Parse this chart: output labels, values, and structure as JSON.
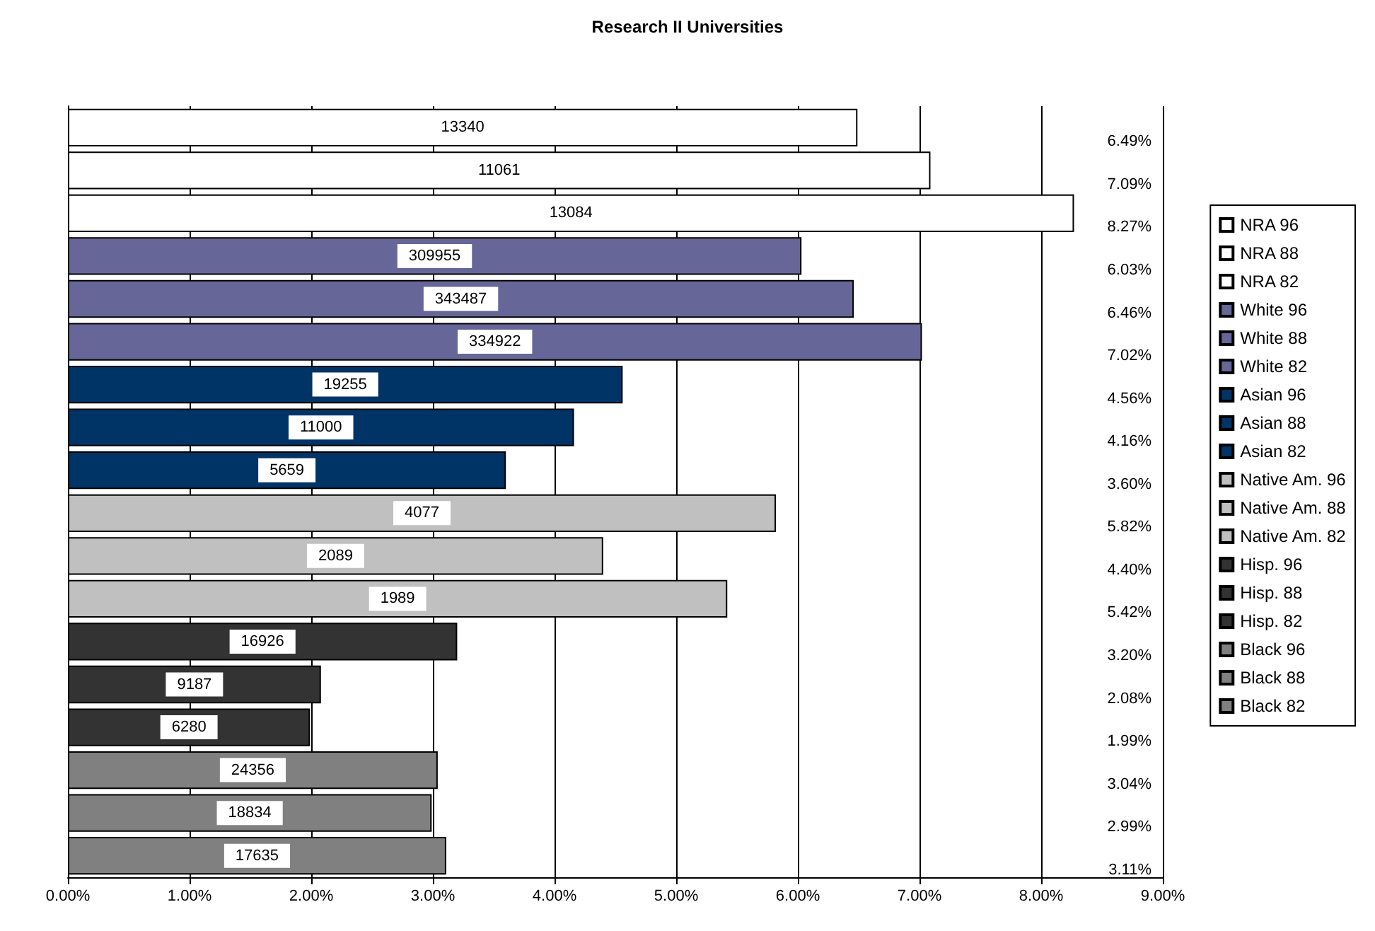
{
  "chart_data": {
    "type": "bar",
    "title": "Research II Universities",
    "orientation": "horizontal",
    "stacked": true,
    "grid": "x",
    "legend": "right",
    "categories": [
      null,
      null,
      null,
      null,
      null,
      null,
      null,
      null,
      null,
      null,
      null,
      null,
      null,
      null,
      null,
      null,
      null,
      null
    ],
    "series": [
      {
        "name": "NRA 96",
        "color": "#ffffff",
        "values": [
          6.49,
          null,
          null,
          null,
          null,
          null,
          null,
          null,
          null,
          null,
          null,
          null,
          null,
          null,
          null,
          null,
          null,
          null
        ]
      },
      {
        "name": "NRA 88",
        "color": "#ffffff",
        "values": [
          null,
          7.09,
          null,
          null,
          null,
          null,
          null,
          null,
          null,
          null,
          null,
          null,
          null,
          null,
          null,
          null,
          null,
          null
        ]
      },
      {
        "name": "NRA 82",
        "color": "#ffffff",
        "values": [
          null,
          null,
          8.27,
          null,
          null,
          null,
          null,
          null,
          null,
          null,
          null,
          null,
          null,
          null,
          null,
          null,
          null,
          null
        ]
      },
      {
        "name": "White 96",
        "color": "#666699",
        "values": [
          null,
          null,
          null,
          6.03,
          null,
          null,
          null,
          null,
          null,
          null,
          null,
          null,
          null,
          null,
          null,
          null,
          null,
          null
        ]
      },
      {
        "name": "White 88",
        "color": "#666699",
        "values": [
          null,
          null,
          null,
          null,
          6.46,
          null,
          null,
          null,
          null,
          null,
          null,
          null,
          null,
          null,
          null,
          null,
          null,
          null
        ]
      },
      {
        "name": "White 82",
        "color": "#666699",
        "values": [
          null,
          null,
          null,
          null,
          null,
          7.02,
          null,
          null,
          null,
          null,
          null,
          null,
          null,
          null,
          null,
          null,
          null,
          null
        ]
      },
      {
        "name": "Asian 96",
        "color": "#003366",
        "values": [
          null,
          null,
          null,
          null,
          null,
          null,
          4.56,
          null,
          null,
          null,
          null,
          null,
          null,
          null,
          null,
          null,
          null,
          null
        ]
      },
      {
        "name": "Asian 88",
        "color": "#003366",
        "values": [
          null,
          null,
          null,
          null,
          null,
          null,
          null,
          4.16,
          null,
          null,
          null,
          null,
          null,
          null,
          null,
          null,
          null,
          null
        ]
      },
      {
        "name": "Asian 82",
        "color": "#003366",
        "values": [
          null,
          null,
          null,
          null,
          null,
          null,
          null,
          null,
          3.6,
          null,
          null,
          null,
          null,
          null,
          null,
          null,
          null,
          null
        ]
      },
      {
        "name": "Native Am. 96",
        "color": "#c0c0c0",
        "values": [
          null,
          null,
          null,
          null,
          null,
          null,
          null,
          null,
          null,
          5.82,
          null,
          null,
          null,
          null,
          null,
          null,
          null,
          null
        ]
      },
      {
        "name": "Native Am. 88",
        "color": "#c0c0c0",
        "values": [
          null,
          null,
          null,
          null,
          null,
          null,
          null,
          null,
          null,
          null,
          4.4,
          null,
          null,
          null,
          null,
          null,
          null,
          null
        ]
      },
      {
        "name": "Native Am. 82",
        "color": "#c0c0c0",
        "values": [
          null,
          null,
          null,
          null,
          null,
          null,
          null,
          null,
          null,
          null,
          null,
          5.42,
          null,
          null,
          null,
          null,
          null,
          null
        ]
      },
      {
        "name": "Hisp. 96",
        "color": "#333333",
        "values": [
          null,
          null,
          null,
          null,
          null,
          null,
          null,
          null,
          null,
          null,
          null,
          null,
          3.2,
          null,
          null,
          null,
          null,
          null
        ]
      },
      {
        "name": "Hisp. 88",
        "color": "#333333",
        "values": [
          null,
          null,
          null,
          null,
          null,
          null,
          null,
          null,
          null,
          null,
          null,
          null,
          null,
          2.08,
          null,
          null,
          null,
          null
        ]
      },
      {
        "name": "Hisp. 82",
        "color": "#333333",
        "values": [
          null,
          null,
          null,
          null,
          null,
          null,
          null,
          null,
          null,
          null,
          null,
          null,
          null,
          null,
          1.99,
          null,
          null,
          null
        ]
      },
      {
        "name": "Black 96",
        "color": "#808080",
        "values": [
          null,
          null,
          null,
          null,
          null,
          null,
          null,
          null,
          null,
          null,
          null,
          null,
          null,
          null,
          null,
          3.04,
          null,
          null
        ]
      },
      {
        "name": "Black 88",
        "color": "#808080",
        "values": [
          null,
          null,
          null,
          null,
          null,
          null,
          null,
          null,
          null,
          null,
          null,
          null,
          null,
          null,
          null,
          null,
          2.99,
          null
        ]
      },
      {
        "name": "Black 82",
        "color": "#808080",
        "values": [
          null,
          null,
          null,
          null,
          null,
          null,
          null,
          null,
          null,
          null,
          null,
          null,
          null,
          null,
          null,
          null,
          null,
          3.11
        ]
      }
    ],
    "annotations": [
      "13340",
      "11061",
      "13084",
      "309955",
      "343487",
      "334922",
      "19255",
      "11000",
      "5659",
      "4077",
      "2089",
      "1989",
      "16926",
      "9187",
      "6280",
      "24356",
      "18834",
      "17635",
      "6.49%",
      "7.09%",
      "8.27%",
      "6.03%",
      "6.46%",
      "7.02%",
      "4.56%",
      "4.16%",
      "3.60%",
      "5.82%",
      "4.40%",
      "5.42%",
      "3.20%",
      "2.08%",
      "1.99%",
      "3.04%",
      "2.99%",
      "3.11%"
    ],
    "xlim": [
      0,
      9
    ],
    "xticks": [
      {
        "value": 0,
        "label": "0.00%"
      },
      {
        "value": 1,
        "label": "1.00%"
      },
      {
        "value": 2,
        "label": "2.00%"
      },
      {
        "value": 3,
        "label": "3.00%"
      },
      {
        "value": 4,
        "label": "4.00%"
      },
      {
        "value": 5,
        "label": "5.00%"
      },
      {
        "value": 6,
        "label": "6.00%"
      },
      {
        "value": 7,
        "label": "7.00%"
      },
      {
        "value": 8,
        "label": "8.00%"
      },
      {
        "value": 9,
        "label": "9.00%"
      }
    ]
  }
}
